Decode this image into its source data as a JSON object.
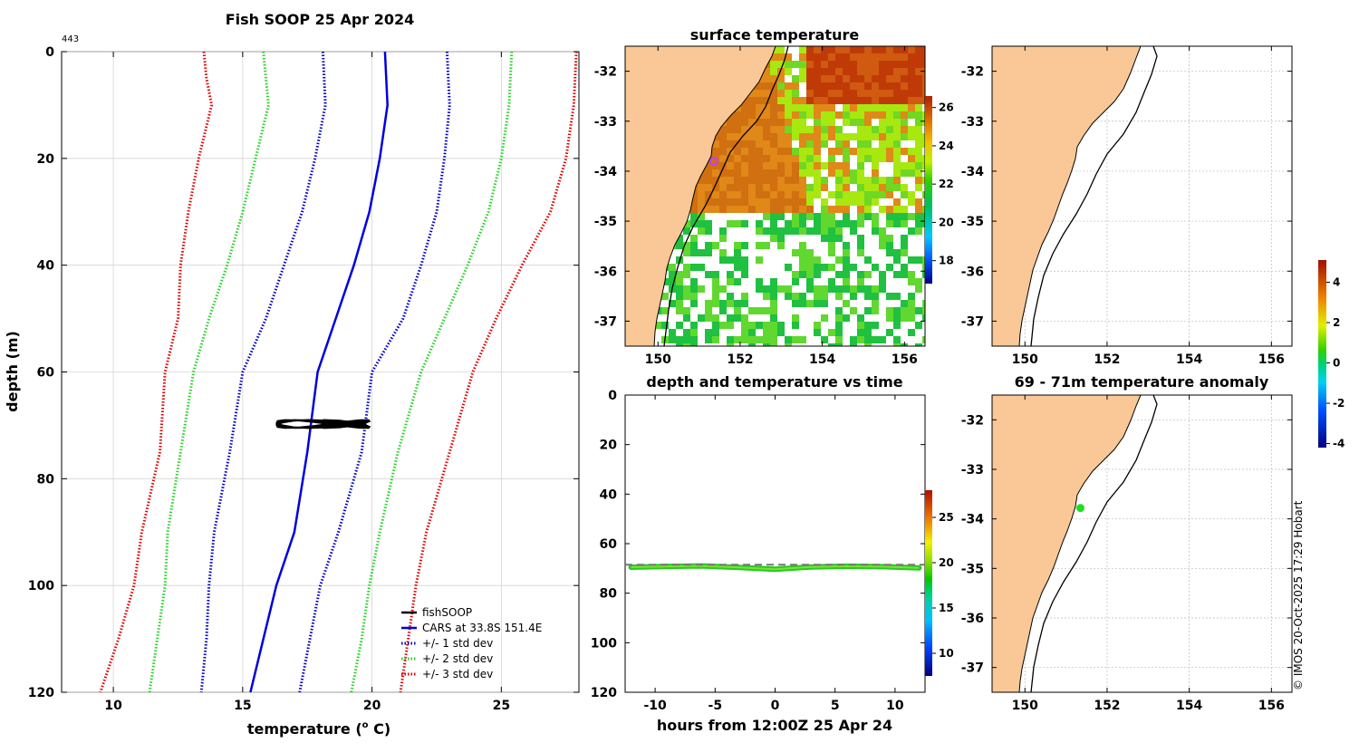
{
  "figure_title": "Fish SOOP 25 Apr 2024",
  "profile_id": "443",
  "credit": "© IMOS 20-Oct-2025 17:29 Hobart",
  "colors": {
    "land": "#f9c896",
    "cars": "#0000e0",
    "std1": "#0000c8",
    "std2": "#28d228",
    "std3": "#e00000",
    "fishsoop": "#000000",
    "grid": "#d0d0d0",
    "marker_surface": "#c040ff",
    "marker_anomaly": "#22dd22"
  },
  "icons": {
    "legend_line": "line-swatch"
  },
  "chart_data": [
    {
      "id": "profile",
      "type": "line",
      "title": "",
      "xlabel": "temperature (",
      "xlabel_sup": "o",
      "xlabel_tail": " C)",
      "ylabel": "depth (m)",
      "xlim": [
        8,
        28
      ],
      "ylim": [
        0,
        120
      ],
      "y_reversed": true,
      "grid": true,
      "xticks": [
        10,
        15,
        20,
        25
      ],
      "yticks": [
        0,
        20,
        40,
        60,
        80,
        100,
        120
      ],
      "legend_position": "bottom-right",
      "legend": [
        {
          "label": "fishSOOP",
          "color": "#000000",
          "dash": "solid"
        },
        {
          "label": "CARS at 33.8S 151.4E",
          "color": "#0000e0",
          "dash": "solid"
        },
        {
          "label": "+/- 1 std dev",
          "color": "#0000c8",
          "dash": "dot"
        },
        {
          "label": "+/- 2 std dev",
          "color": "#28d228",
          "dash": "dot"
        },
        {
          "label": "+/- 3 std dev",
          "color": "#e00000",
          "dash": "dot"
        }
      ],
      "depths": [
        0,
        5,
        10,
        20,
        30,
        40,
        50,
        60,
        75,
        90,
        100,
        110,
        120
      ],
      "series": [
        {
          "name": "CARS",
          "color": "#0000e0",
          "dash": "solid",
          "values": [
            20.5,
            20.55,
            20.6,
            20.3,
            19.9,
            19.3,
            18.6,
            17.9,
            17.5,
            17.0,
            16.3,
            15.8,
            15.3
          ]
        },
        {
          "name": "-1 std",
          "color": "#0000c8",
          "dash": "dot",
          "values": [
            18.1,
            18.15,
            18.2,
            17.8,
            17.3,
            16.6,
            15.9,
            15.0,
            14.5,
            13.9,
            13.7,
            13.6,
            13.4
          ]
        },
        {
          "name": "+1 std",
          "color": "#0000c8",
          "dash": "dot",
          "values": [
            22.9,
            22.95,
            23.0,
            22.8,
            22.5,
            21.9,
            21.2,
            20.0,
            19.6,
            18.7,
            18.0,
            17.6,
            17.2
          ]
        },
        {
          "name": "-2 std",
          "color": "#28d228",
          "dash": "dot",
          "values": [
            15.8,
            15.9,
            16.0,
            15.5,
            15.0,
            14.4,
            13.7,
            13.1,
            12.6,
            12.1,
            12.0,
            11.7,
            11.4
          ]
        },
        {
          "name": "+2 std",
          "color": "#28d228",
          "dash": "dot",
          "values": [
            25.4,
            25.35,
            25.3,
            25.0,
            24.5,
            23.7,
            22.8,
            21.9,
            21.0,
            20.3,
            19.9,
            19.6,
            19.2
          ]
        },
        {
          "name": "-3 std",
          "color": "#e00000",
          "dash": "dot",
          "values": [
            13.5,
            13.6,
            13.8,
            13.3,
            12.9,
            12.6,
            12.5,
            12.0,
            11.8,
            11.1,
            10.8,
            10.2,
            9.5
          ]
        },
        {
          "name": "+3 std",
          "color": "#e00000",
          "dash": "dot",
          "values": [
            27.9,
            27.85,
            27.8,
            27.5,
            26.9,
            25.8,
            24.8,
            23.9,
            23.0,
            22.1,
            21.7,
            21.4,
            21.1
          ]
        }
      ],
      "fishsoop": {
        "depth_range": [
          69,
          70.5
        ],
        "temp_range": [
          16.3,
          19.9
        ]
      }
    },
    {
      "id": "surface-temperature",
      "type": "heatmap",
      "title": "surface temperature",
      "xlim": [
        149.2,
        156.5
      ],
      "ylim": [
        -37.5,
        -31.5
      ],
      "xticks": [
        150,
        152,
        154,
        156
      ],
      "yticks": [
        -32,
        -33,
        -34,
        -35,
        -36,
        -37
      ],
      "colorbar_ticks": [
        18,
        20,
        22,
        24,
        26
      ],
      "colorbar_range": [
        16.8,
        26.6
      ]
    },
    {
      "id": "map-empty",
      "type": "heatmap",
      "title": "",
      "xlim": [
        149.2,
        156.5
      ],
      "ylim": [
        -37.5,
        -31.5
      ],
      "xticks": [
        150,
        152,
        154,
        156
      ],
      "yticks": [
        -32,
        -33,
        -34,
        -35,
        -36,
        -37
      ]
    },
    {
      "id": "depth-time",
      "type": "scatter",
      "title": "depth and temperature vs time",
      "xlabel": "hours from 12:00Z 25 Apr 24",
      "xlim": [
        -12.5,
        12.5
      ],
      "ylim": [
        0,
        120
      ],
      "y_reversed": true,
      "xticks": [
        -10,
        -5,
        0,
        5,
        10
      ],
      "yticks": [
        0,
        20,
        40,
        60,
        80,
        100,
        120
      ],
      "reference_depth": 68.5,
      "track": {
        "hours": [
          -12,
          -9,
          -6,
          -3,
          0,
          3,
          6,
          9,
          12
        ],
        "depths": [
          69.5,
          69.2,
          69,
          69.6,
          70.3,
          69.4,
          69.1,
          69.3,
          69.8
        ]
      },
      "colorbar_ticks": [
        10,
        15,
        20,
        25
      ],
      "colorbar_range": [
        7.5,
        28
      ]
    },
    {
      "id": "anomaly-map",
      "type": "heatmap",
      "title": "69 - 71m temperature anomaly",
      "xlim": [
        149.2,
        156.5
      ],
      "ylim": [
        -37.5,
        -31.5
      ],
      "xticks": [
        150,
        152,
        154,
        156
      ],
      "yticks": [
        -32,
        -33,
        -34,
        -35,
        -36,
        -37
      ],
      "point": {
        "lon": 151.35,
        "lat": -33.78,
        "anomaly": 0.3
      },
      "colorbar_ticks": [
        -4,
        -2,
        0,
        2,
        4
      ],
      "colorbar_range": [
        -4.2,
        5.1
      ]
    }
  ]
}
